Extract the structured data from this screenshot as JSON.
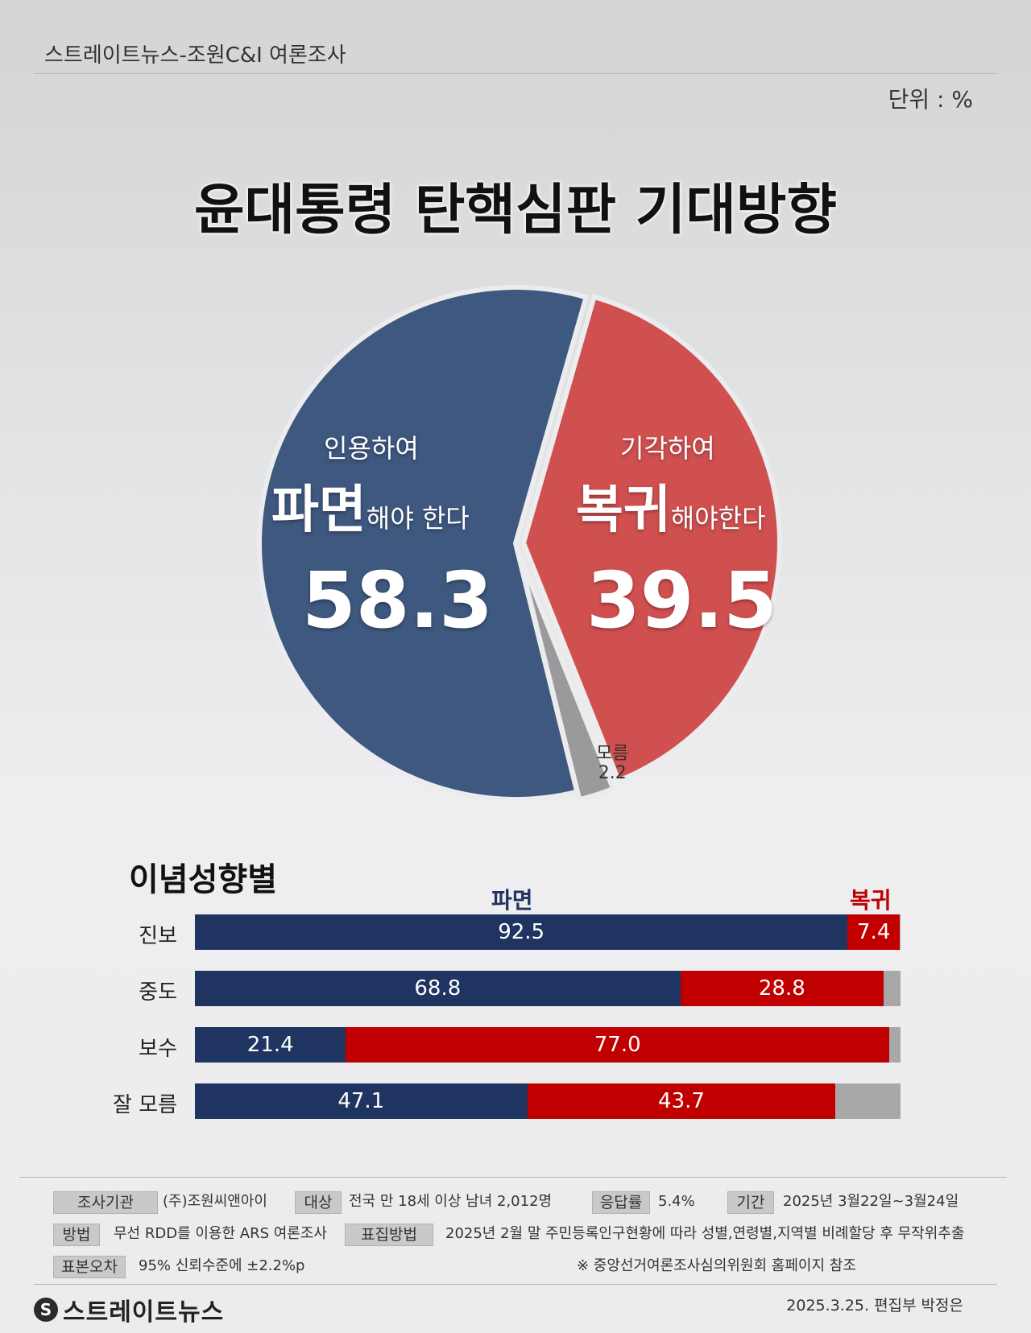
{
  "source": "스트레이트뉴스-조원C&I 여론조사",
  "unit": "단위 : %",
  "title": "윤대통령 탄핵심판 기대방향",
  "pie": {
    "left_sub": "인용하여",
    "left_big": "파면",
    "left_small": "해야 한다",
    "left_value": "58.3",
    "right_sub": "기각하여",
    "right_big": "복귀",
    "right_small": "해야한다",
    "right_value": "39.5",
    "dk_label": "모름",
    "dk_value": "2.2"
  },
  "section_title": "이념성향별",
  "legend": {
    "a": "파면",
    "b": "복귀"
  },
  "rows": [
    {
      "label": "진보",
      "a": "92.5",
      "b": "7.4"
    },
    {
      "label": "중도",
      "a": "68.8",
      "b": "28.8"
    },
    {
      "label": "보수",
      "a": "21.4",
      "b": "77.0"
    },
    {
      "label": "잘 모름",
      "a": "47.1",
      "b": "43.7"
    }
  ],
  "info": {
    "org_tag": "조사기관",
    "org": "(주)조원씨앤아이",
    "target_tag": "대상",
    "target": "전국 만 18세 이상 남녀 2,012명",
    "resp_tag": "응답률",
    "resp": "5.4%",
    "period_tag": "기간",
    "period": "2025년 3월22일~3월24일",
    "method_tag": "방법",
    "method": "무선 RDD를 이용한 ARS 여론조사",
    "weight_tag": "표집방법",
    "weight": "2025년 2월 말 주민등록인구현황에 따라 성별,연령별,지역별 비례할당 후 무작위추출",
    "error_tag": "표본오차",
    "error": "95% 신뢰수준에 ±2.2%p",
    "note": "※ 중앙선거여론조사심의위원회 홈페이지 참조"
  },
  "logo_text": "스트레이트뉴스",
  "credit": "2025.3.25. 편집부 박정은",
  "colors": {
    "a": "#1f3460",
    "b": "#c00000",
    "c": "#a9a8a9",
    "pie_a": "#3f587f",
    "pie_b": "#d05050",
    "pie_c": "#9a9a9c"
  },
  "chart_data": [
    {
      "type": "pie",
      "title": "윤대통령 탄핵심판 기대방향",
      "labels": [
        "인용하여 파면해야 한다",
        "기각하여 복귀해야한다",
        "모름"
      ],
      "values": [
        58.3,
        39.5,
        2.2
      ]
    },
    {
      "type": "bar",
      "title": "이념성향별",
      "orientation": "horizontal-stacked",
      "categories": [
        "진보",
        "중도",
        "보수",
        "잘 모름"
      ],
      "series": [
        {
          "name": "파면",
          "values": [
            92.5,
            68.8,
            21.4,
            47.1
          ]
        },
        {
          "name": "복귀",
          "values": [
            7.4,
            28.8,
            77.0,
            43.7
          ]
        }
      ],
      "xlim": [
        0,
        100
      ]
    }
  ]
}
